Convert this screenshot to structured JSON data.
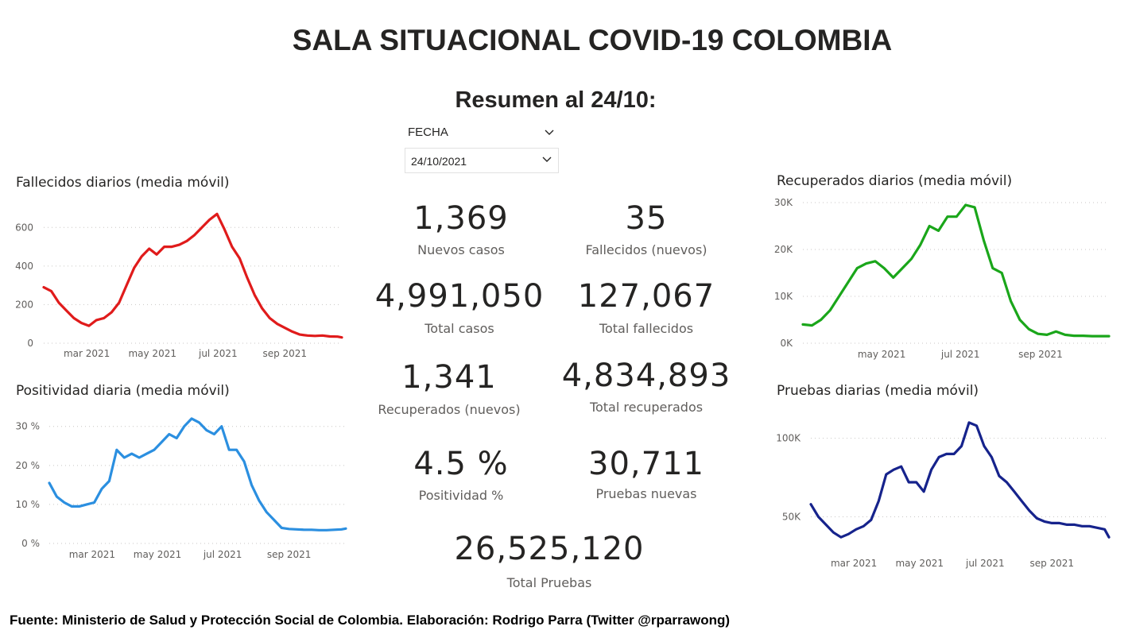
{
  "header": {
    "title": "SALA SITUACIONAL COVID-19 COLOMBIA",
    "subtitle": "Resumen al 24/10:"
  },
  "slicer": {
    "label": "FECHA",
    "value": "24/10/2021"
  },
  "kpis": {
    "nuevos_casos": {
      "value": "1,369",
      "label": "Nuevos casos"
    },
    "fallecidos_nuevos": {
      "value": "35",
      "label": "Fallecidos (nuevos)"
    },
    "total_casos": {
      "value": "4,991,050",
      "label": "Total casos"
    },
    "total_fallecidos": {
      "value": "127,067",
      "label": "Total fallecidos"
    },
    "recuperados_nuevos": {
      "value": "1,341",
      "label": "Recuperados (nuevos)"
    },
    "total_recuperados": {
      "value": "4,834,893",
      "label": "Total recuperados"
    },
    "positividad": {
      "value": "4.5 %",
      "label": "Positividad %"
    },
    "pruebas_nuevas": {
      "value": "30,711",
      "label": "Pruebas nuevas"
    },
    "total_pruebas": {
      "value": "26,525,120",
      "label": "Total Pruebas"
    }
  },
  "footer": {
    "text": "Fuente: Ministerio de Salud y Protección Social de Colombia. Elaboración: Rodrigo Parra (Twitter @rparrawong)"
  },
  "chart_data": [
    {
      "id": "fallecidos",
      "type": "line",
      "title": "Fallecidos diarios (media móvil)",
      "color": "#e01b1b",
      "x_start": "2021-01-20",
      "x_end": "2021-10-24",
      "ylim": [
        0,
        700
      ],
      "yticks": [
        0,
        200,
        400,
        600
      ],
      "ytick_labels": [
        "0",
        "200",
        "400",
        "600"
      ],
      "xticks": [
        "2021-03-01",
        "2021-05-01",
        "2021-07-01",
        "2021-09-01"
      ],
      "xtick_labels": [
        "mar 2021",
        "may 2021",
        "jul 2021",
        "sep 2021"
      ],
      "grid": true,
      "series": [
        {
          "x": [
            "2021-01-20",
            "2021-01-27",
            "2021-02-03",
            "2021-02-10",
            "2021-02-17",
            "2021-02-24",
            "2021-03-03",
            "2021-03-10",
            "2021-03-17",
            "2021-03-24",
            "2021-03-31",
            "2021-04-07",
            "2021-04-14",
            "2021-04-21",
            "2021-04-28",
            "2021-05-05",
            "2021-05-12",
            "2021-05-19",
            "2021-05-26",
            "2021-06-02",
            "2021-06-09",
            "2021-06-16",
            "2021-06-23",
            "2021-06-30",
            "2021-07-07",
            "2021-07-14",
            "2021-07-21",
            "2021-07-28",
            "2021-08-04",
            "2021-08-11",
            "2021-08-18",
            "2021-08-25",
            "2021-09-01",
            "2021-09-08",
            "2021-09-15",
            "2021-09-22",
            "2021-09-29",
            "2021-10-06",
            "2021-10-13",
            "2021-10-20",
            "2021-10-24"
          ],
          "values": [
            290,
            270,
            210,
            170,
            130,
            105,
            90,
            120,
            130,
            160,
            210,
            300,
            390,
            450,
            490,
            460,
            500,
            500,
            510,
            530,
            560,
            600,
            640,
            670,
            590,
            500,
            440,
            340,
            250,
            180,
            130,
            100,
            80,
            60,
            45,
            40,
            38,
            40,
            35,
            34,
            30
          ]
        }
      ]
    },
    {
      "id": "positividad",
      "type": "line",
      "title": "Positividad diaria (media móvil)",
      "color": "#2b8fe0",
      "x_start": "2021-01-20",
      "x_end": "2021-10-24",
      "ylim": [
        0,
        33
      ],
      "yticks": [
        0,
        10,
        20,
        30
      ],
      "ytick_labels": [
        "0 %",
        "10 %",
        "20 %",
        "30 %"
      ],
      "xticks": [
        "2021-03-01",
        "2021-05-01",
        "2021-07-01",
        "2021-09-01"
      ],
      "xtick_labels": [
        "mar 2021",
        "may 2021",
        "jul 2021",
        "sep 2021"
      ],
      "grid": true,
      "series": [
        {
          "x": [
            "2021-01-20",
            "2021-01-27",
            "2021-02-03",
            "2021-02-10",
            "2021-02-17",
            "2021-02-24",
            "2021-03-03",
            "2021-03-10",
            "2021-03-17",
            "2021-03-24",
            "2021-03-31",
            "2021-04-07",
            "2021-04-14",
            "2021-04-21",
            "2021-04-28",
            "2021-05-05",
            "2021-05-12",
            "2021-05-19",
            "2021-05-26",
            "2021-06-02",
            "2021-06-09",
            "2021-06-16",
            "2021-06-23",
            "2021-06-30",
            "2021-07-07",
            "2021-07-14",
            "2021-07-21",
            "2021-07-28",
            "2021-08-04",
            "2021-08-11",
            "2021-08-18",
            "2021-08-25",
            "2021-09-01",
            "2021-09-08",
            "2021-09-15",
            "2021-09-22",
            "2021-09-29",
            "2021-10-06",
            "2021-10-13",
            "2021-10-20",
            "2021-10-24"
          ],
          "values": [
            15.5,
            12,
            10.5,
            9.5,
            9.5,
            10,
            10.5,
            14,
            16,
            24,
            22,
            23,
            22,
            23,
            24,
            26,
            28,
            27,
            30,
            32,
            31,
            29,
            28,
            30,
            24,
            24,
            21,
            15,
            11,
            8,
            6,
            4,
            3.7,
            3.6,
            3.5,
            3.5,
            3.4,
            3.4,
            3.5,
            3.6,
            3.8
          ]
        }
      ]
    },
    {
      "id": "recuperados",
      "type": "line",
      "title": "Recuperados diarios (media móvil)",
      "color": "#1aa61a",
      "x_start": "2021-03-01",
      "x_end": "2021-10-24",
      "ylim": [
        0,
        30000
      ],
      "yticks": [
        0,
        10000,
        20000,
        30000
      ],
      "ytick_labels": [
        "0K",
        "10K",
        "20K",
        "30K"
      ],
      "xticks": [
        "2021-05-01",
        "2021-07-01",
        "2021-09-01"
      ],
      "xtick_labels": [
        "may 2021",
        "jul 2021",
        "sep 2021"
      ],
      "grid": true,
      "series": [
        {
          "x": [
            "2021-03-01",
            "2021-03-08",
            "2021-03-15",
            "2021-03-22",
            "2021-03-29",
            "2021-04-05",
            "2021-04-12",
            "2021-04-19",
            "2021-04-26",
            "2021-05-03",
            "2021-05-10",
            "2021-05-17",
            "2021-05-24",
            "2021-05-31",
            "2021-06-07",
            "2021-06-14",
            "2021-06-21",
            "2021-06-28",
            "2021-07-05",
            "2021-07-12",
            "2021-07-19",
            "2021-07-26",
            "2021-08-02",
            "2021-08-09",
            "2021-08-16",
            "2021-08-23",
            "2021-08-30",
            "2021-09-06",
            "2021-09-13",
            "2021-09-20",
            "2021-09-27",
            "2021-10-04",
            "2021-10-11",
            "2021-10-18",
            "2021-10-24"
          ],
          "values": [
            4000,
            3800,
            5000,
            7000,
            10000,
            13000,
            16000,
            17000,
            17500,
            16000,
            14000,
            16000,
            18000,
            21000,
            25000,
            24000,
            27000,
            27000,
            29500,
            29000,
            22000,
            16000,
            15000,
            9000,
            5000,
            3000,
            2000,
            1800,
            2500,
            1800,
            1600,
            1600,
            1500,
            1500,
            1500
          ]
        }
      ]
    },
    {
      "id": "pruebas",
      "type": "line",
      "title": "Pruebas diarias (media móvil)",
      "color": "#16238c",
      "x_start": "2021-01-20",
      "x_end": "2021-10-24",
      "ylim": [
        30000,
        115000
      ],
      "yticks": [
        50000,
        100000
      ],
      "ytick_labels": [
        "50K",
        "100K"
      ],
      "xticks": [
        "2021-03-01",
        "2021-05-01",
        "2021-07-01",
        "2021-09-01"
      ],
      "xtick_labels": [
        "mar 2021",
        "may 2021",
        "jul 2021",
        "sep 2021"
      ],
      "grid": true,
      "series": [
        {
          "x": [
            "2021-01-20",
            "2021-01-27",
            "2021-02-03",
            "2021-02-10",
            "2021-02-17",
            "2021-02-24",
            "2021-03-03",
            "2021-03-10",
            "2021-03-17",
            "2021-03-24",
            "2021-03-31",
            "2021-04-07",
            "2021-04-14",
            "2021-04-21",
            "2021-04-28",
            "2021-05-05",
            "2021-05-12",
            "2021-05-19",
            "2021-05-26",
            "2021-06-02",
            "2021-06-09",
            "2021-06-16",
            "2021-06-23",
            "2021-06-30",
            "2021-07-07",
            "2021-07-14",
            "2021-07-21",
            "2021-07-28",
            "2021-08-04",
            "2021-08-11",
            "2021-08-18",
            "2021-08-25",
            "2021-09-01",
            "2021-09-08",
            "2021-09-15",
            "2021-09-22",
            "2021-09-29",
            "2021-10-06",
            "2021-10-13",
            "2021-10-20",
            "2021-10-24"
          ],
          "values": [
            58000,
            50000,
            45000,
            40000,
            37000,
            39000,
            42000,
            44000,
            48000,
            60000,
            77000,
            80000,
            82000,
            72000,
            72000,
            66000,
            80000,
            88000,
            90000,
            90000,
            95000,
            110000,
            108000,
            95000,
            88000,
            76000,
            72000,
            66000,
            60000,
            54000,
            49000,
            47000,
            46000,
            46000,
            45000,
            45000,
            44000,
            44000,
            43000,
            42000,
            37000
          ]
        }
      ]
    }
  ]
}
